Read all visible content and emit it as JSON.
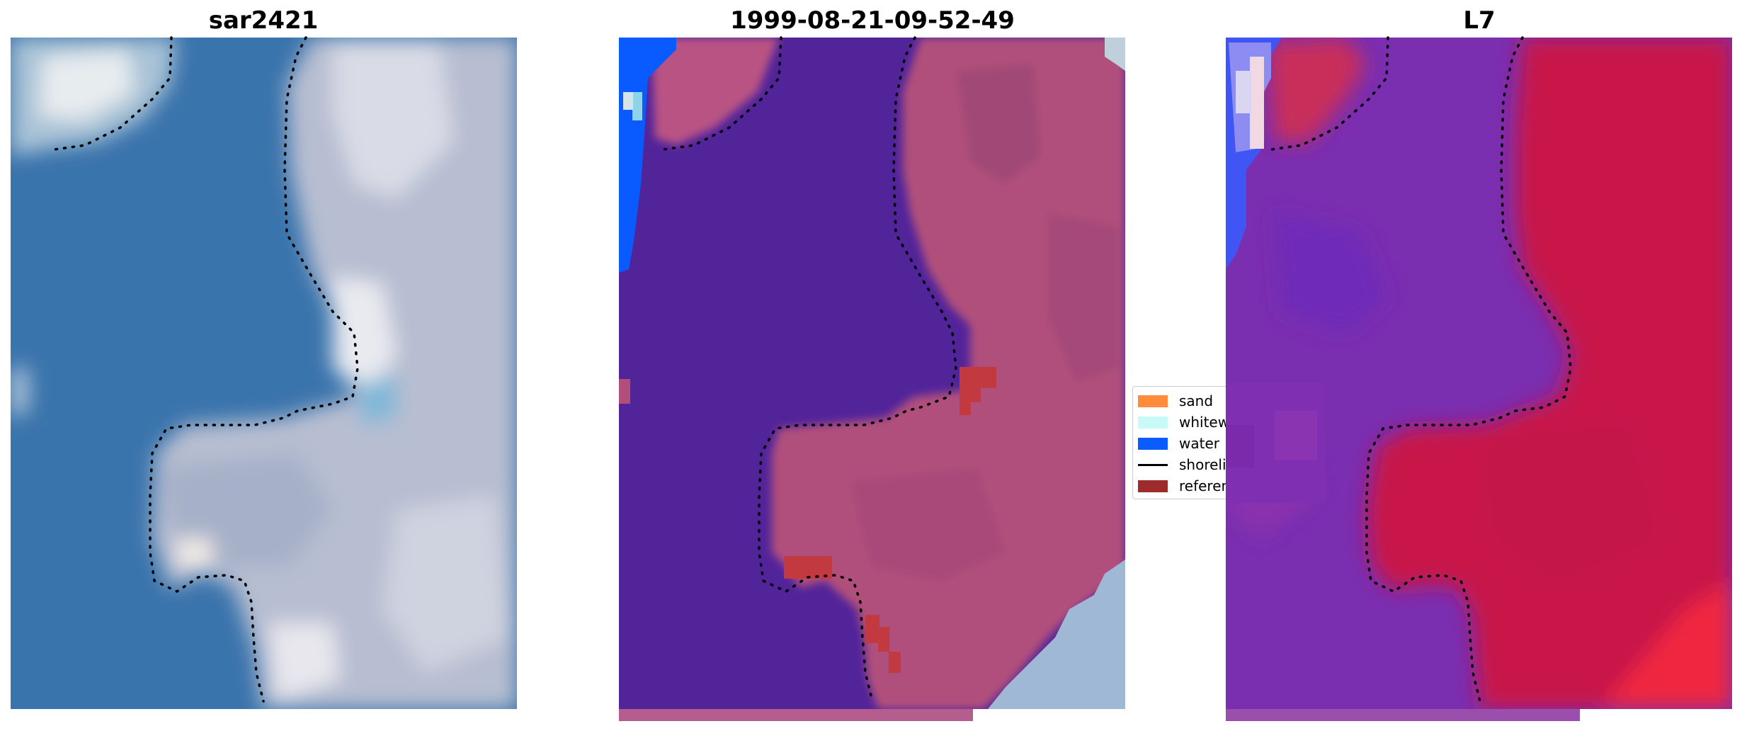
{
  "panels": [
    {
      "title": "sar2421"
    },
    {
      "title": "1999-08-21-09-52-49"
    },
    {
      "title": "L7"
    }
  ],
  "legend": {
    "items": [
      {
        "label": "sand",
        "color": "#ff8c3a",
        "kind": "patch"
      },
      {
        "label": "whitewater",
        "color": "#c8fbf7",
        "kind": "patch"
      },
      {
        "label": "water",
        "color": "#0a5cff",
        "kind": "patch"
      },
      {
        "label": "shoreline",
        "color": "#000000",
        "kind": "line"
      },
      {
        "label": "reference",
        "color": "#9e2b2b",
        "kind": "patch"
      }
    ]
  },
  "colors": {
    "water_rgb": "#3b72a8",
    "land_rgb": "#b9bfd2",
    "class_water_overlay": "#532499",
    "class_land_overlay": "#b4507e",
    "ndwi_negative": "#c41b4a",
    "ndwi_positive": "#6a2aaf"
  }
}
